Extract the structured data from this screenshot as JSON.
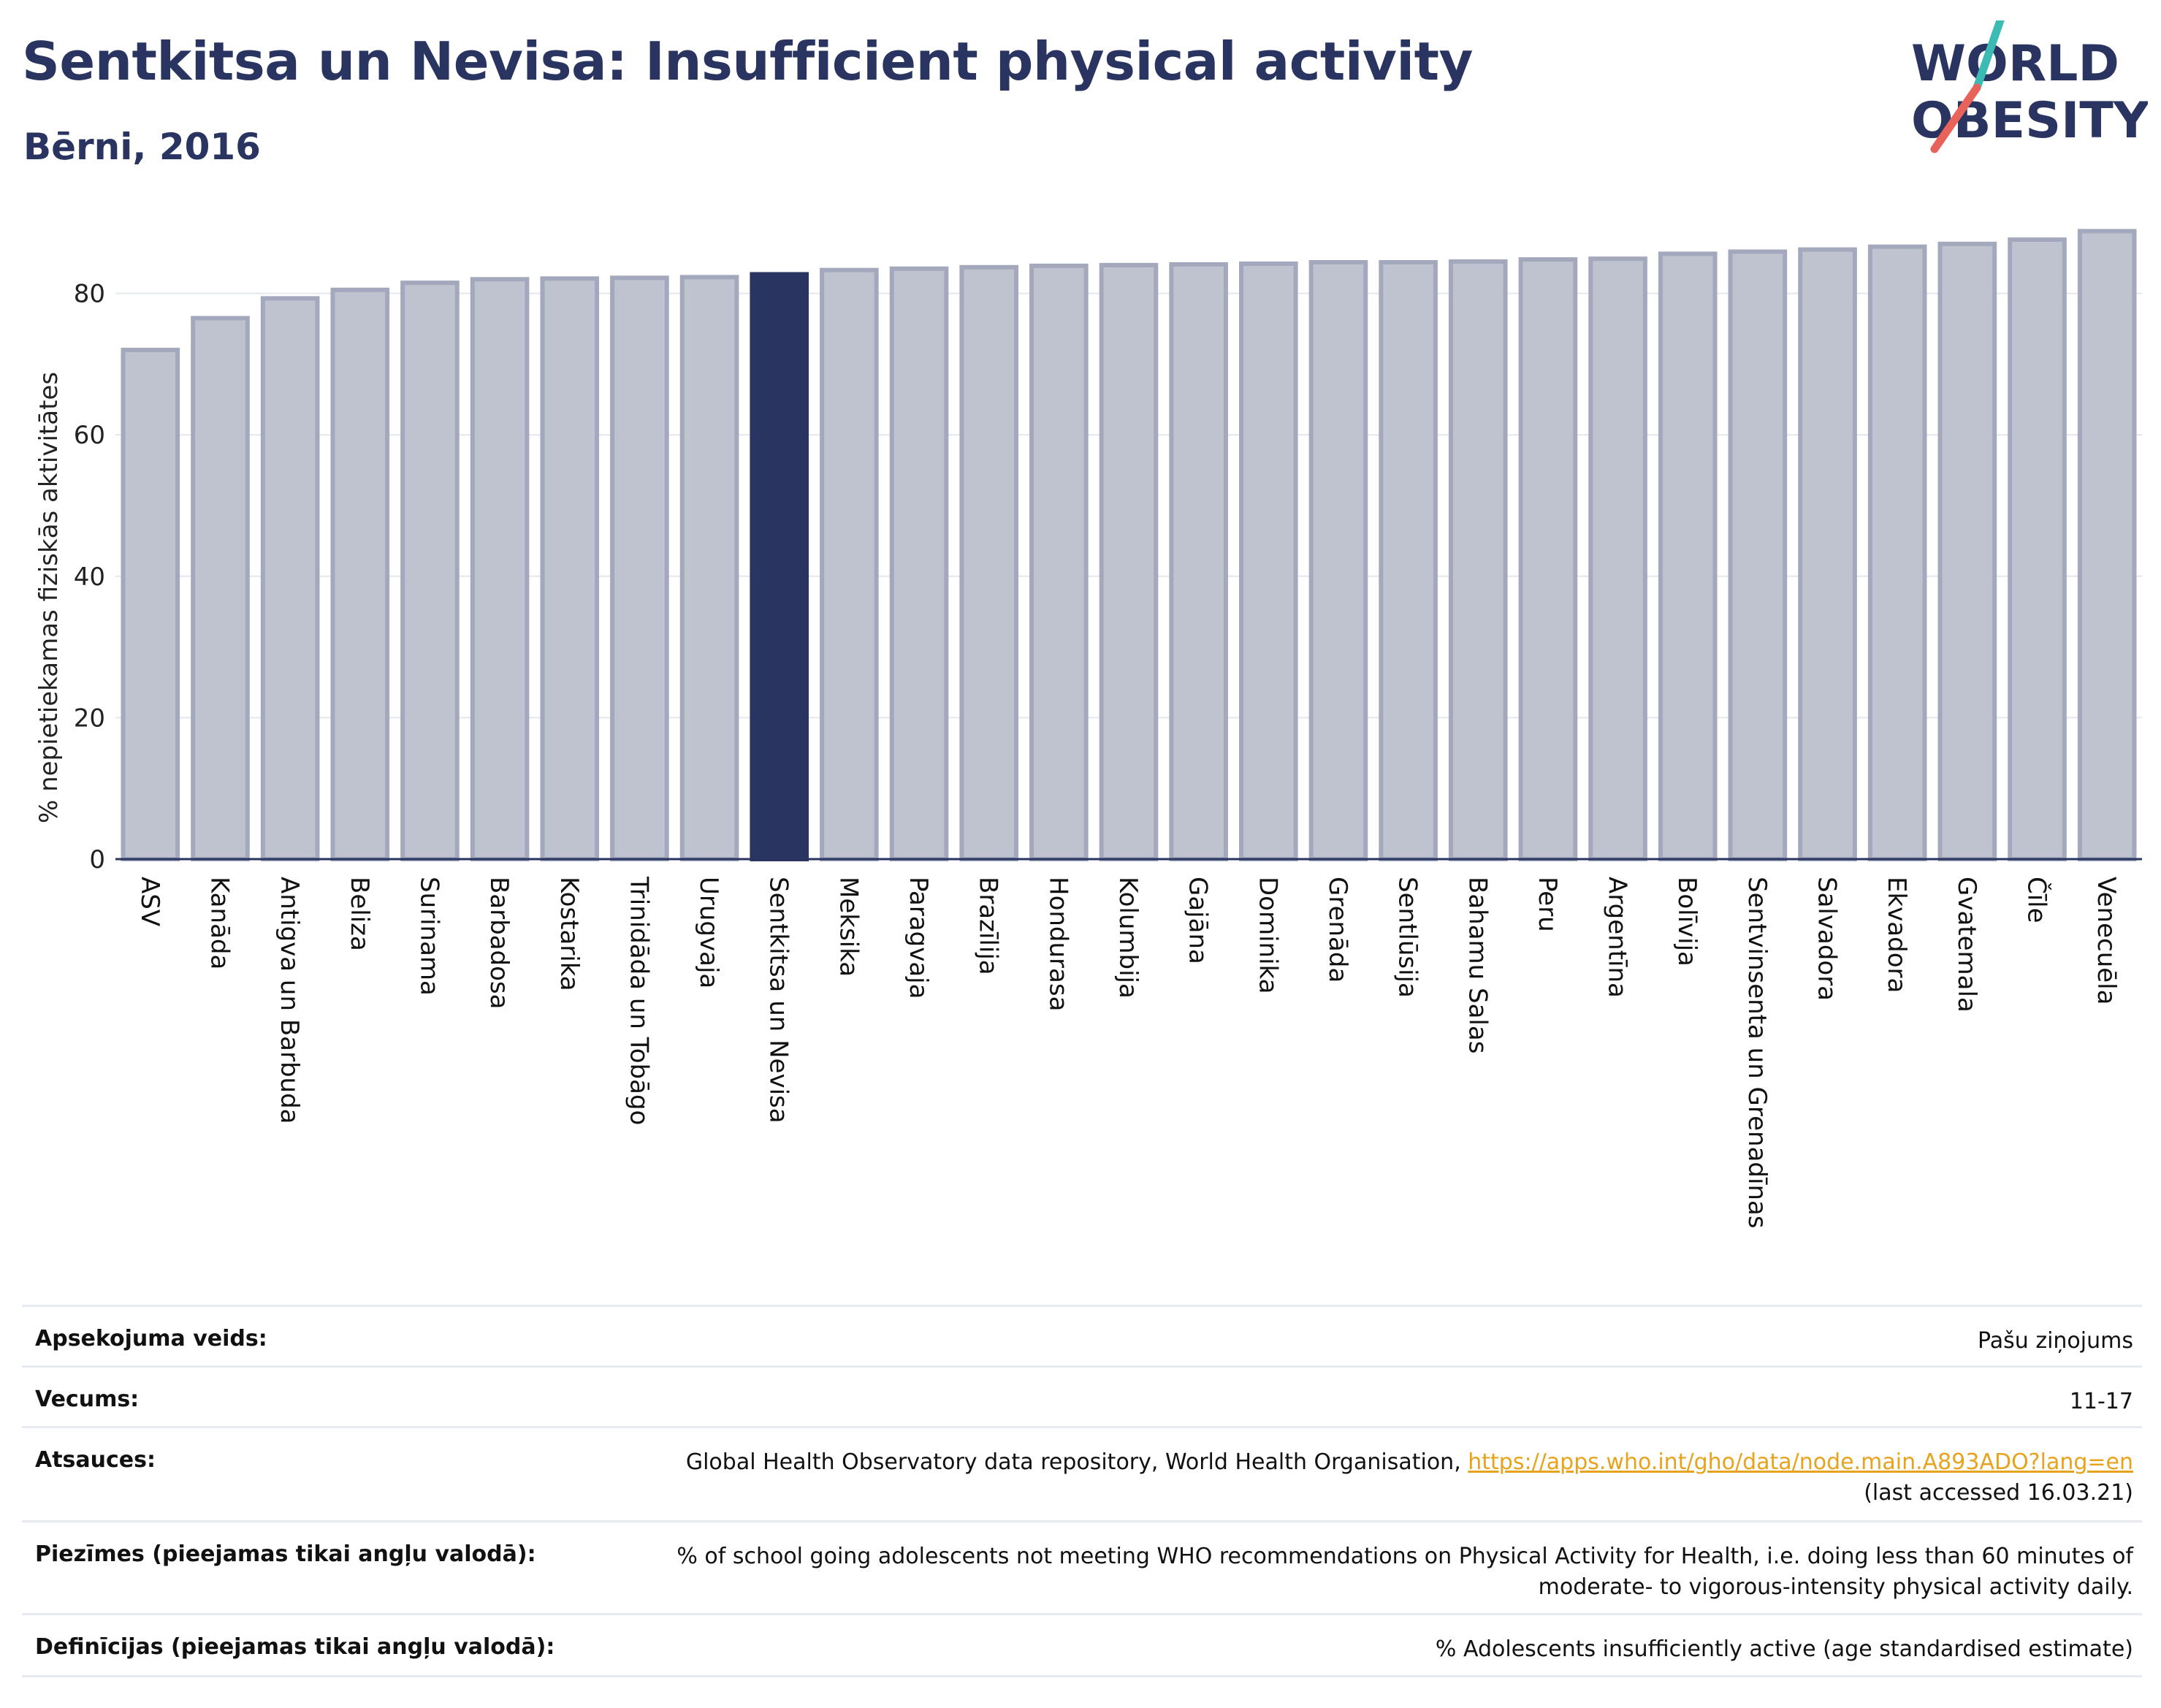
{
  "title": "Sentkitsa un Nevisa: Insufficient physical activity",
  "subtitle": "Bērni, 2016",
  "logo": {
    "text_top": "WORLD",
    "text_bottom": "OBESITY"
  },
  "colors": {
    "title": "#2a3460",
    "highlight_bar": "#2a3460",
    "bar_fill": "#bfc3d0",
    "bar_stroke": "#a3a8bc",
    "link": "#e8a31c",
    "logo_slash_top": "#3bbbb3",
    "logo_slash_bottom": "#e8645a"
  },
  "chart_data": {
    "type": "bar",
    "title": "Sentkitsa un Nevisa: Insufficient physical activity",
    "subtitle": "Bērni, 2016",
    "ylabel": "% nepietiekamas fiziskās aktivitātes",
    "xlabel": "",
    "ylim": [
      0,
      90
    ],
    "yticks": [
      0,
      20,
      40,
      60,
      80
    ],
    "grid": true,
    "highlight": "Sentkitsa un Nevisa",
    "categories": [
      "ASV",
      "Kanāda",
      "Antigva un Barbuda",
      "Beliza",
      "Surinama",
      "Barbadosa",
      "Kostarika",
      "Trinidāda un Tobāgo",
      "Urugvaja",
      "Sentkitsa un Nevisa",
      "Meksika",
      "Paragvaja",
      "Brazīlija",
      "Hondurasa",
      "Kolumbija",
      "Gajāna",
      "Dominika",
      "Grenāda",
      "Sentlūsija",
      "Bahamu Salas",
      "Peru",
      "Argentīna",
      "Bolīvija",
      "Sentvinsenta un Grenadīnas",
      "Salvadora",
      "Ekvadora",
      "Gvatemala",
      "Čīle",
      "Venecuēla"
    ],
    "values": [
      72.0,
      76.5,
      79.3,
      80.5,
      81.5,
      82.0,
      82.1,
      82.2,
      82.3,
      82.7,
      83.3,
      83.5,
      83.7,
      83.9,
      84.0,
      84.1,
      84.2,
      84.4,
      84.4,
      84.5,
      84.8,
      84.9,
      85.6,
      85.9,
      86.2,
      86.6,
      87.0,
      87.6,
      88.8
    ]
  },
  "meta": [
    {
      "label": "Apsekojuma veids:",
      "value": "Pašu ziņojums"
    },
    {
      "label": "Vecums:",
      "value": "11-17"
    },
    {
      "label": "Atsauces:",
      "value": "Global Health Observatory data repository, World Health Organisation, ",
      "link": "https://apps.who.int/gho/data/node.main.A893ADO?lang=en",
      "value2": "(last accessed 16.03.21)"
    },
    {
      "label": "Piezīmes (pieejamas tikai angļu valodā):",
      "value": "% of school going adolescents not meeting WHO recommendations on Physical Activity for Health, i.e. doing less than 60 minutes of",
      "value2": "moderate- to vigorous-intensity physical activity daily."
    },
    {
      "label": "Definīcijas (pieejamas tikai angļu valodā):",
      "value": "% Adolescents insufficiently active (age standardised estimate)"
    }
  ]
}
